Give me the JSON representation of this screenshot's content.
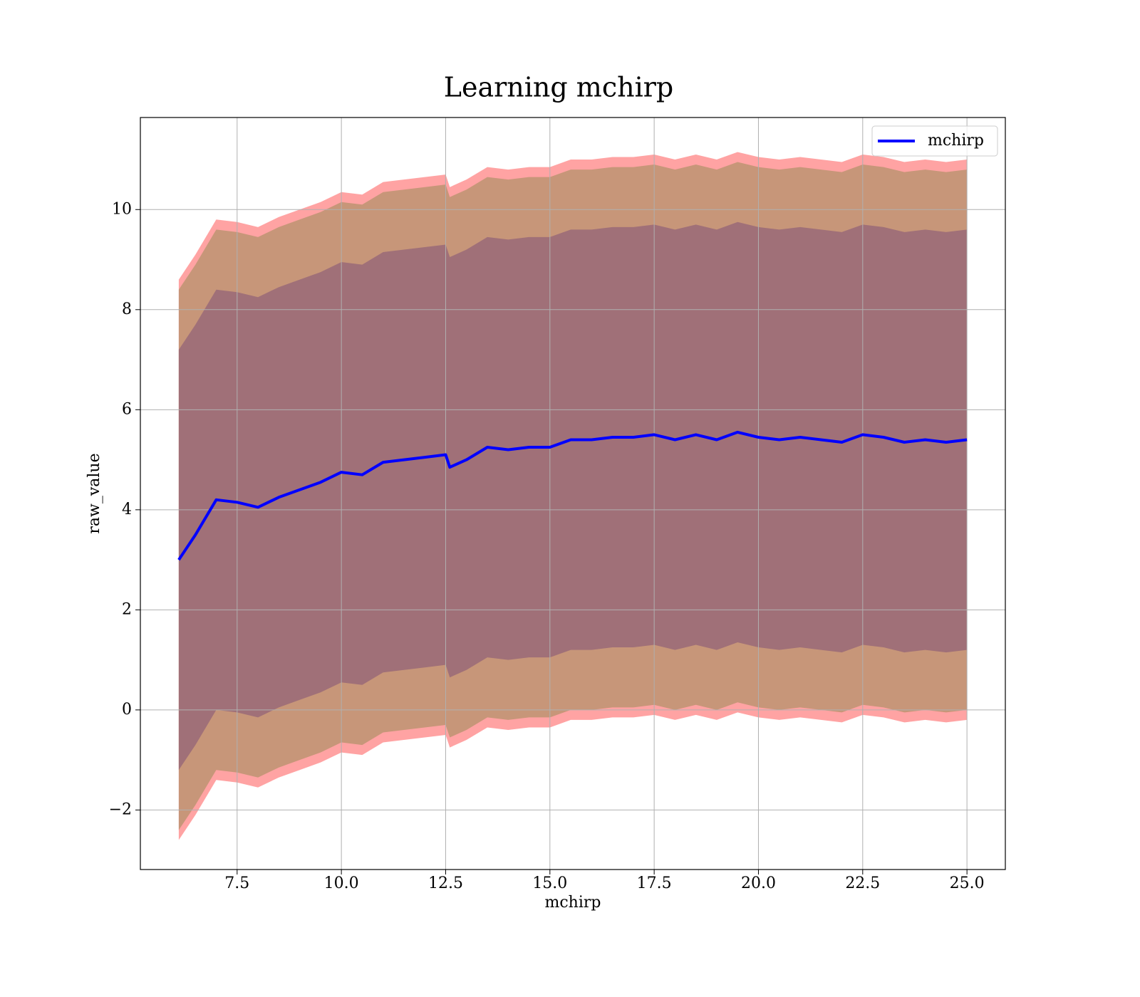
{
  "chart_data": {
    "type": "line",
    "title": "Learning mchirp",
    "xlabel": "mchirp",
    "ylabel": "raw_value",
    "x": [
      6.1,
      6.5,
      7.0,
      7.5,
      8.0,
      8.5,
      9.0,
      9.5,
      10.0,
      10.5,
      11.0,
      11.5,
      12.0,
      12.5,
      12.6,
      13.0,
      13.5,
      14.0,
      14.5,
      15.0,
      15.5,
      16.0,
      16.5,
      17.0,
      17.5,
      18.0,
      18.5,
      19.0,
      19.5,
      20.0,
      20.5,
      21.0,
      21.5,
      22.0,
      22.5,
      23.0,
      23.5,
      24.0,
      24.5,
      25.0
    ],
    "series": [
      {
        "name": "mchirp",
        "color": "#0000ff",
        "values": [
          3.0,
          3.5,
          4.2,
          4.15,
          4.05,
          4.25,
          4.4,
          4.55,
          4.75,
          4.7,
          4.95,
          5.0,
          5.05,
          5.1,
          4.85,
          5.0,
          5.25,
          5.2,
          5.25,
          5.25,
          5.4,
          5.4,
          5.45,
          5.45,
          5.5,
          5.4,
          5.5,
          5.4,
          5.55,
          5.45,
          5.4,
          5.45,
          5.4,
          5.35,
          5.5,
          5.45,
          5.35,
          5.4,
          5.35,
          5.4
        ]
      }
    ],
    "bands": [
      {
        "color": "#ffa3a3",
        "upper": [
          8.6,
          9.1,
          9.8,
          9.75,
          9.65,
          9.85,
          10.0,
          10.15,
          10.35,
          10.3,
          10.55,
          10.6,
          10.65,
          10.7,
          10.45,
          10.6,
          10.85,
          10.8,
          10.85,
          10.85,
          11.0,
          11.0,
          11.05,
          11.05,
          11.1,
          11.0,
          11.1,
          11.0,
          11.15,
          11.05,
          11.0,
          11.05,
          11.0,
          10.95,
          11.1,
          11.05,
          10.95,
          11.0,
          10.95,
          11.0
        ],
        "lower": [
          -2.6,
          -2.1,
          -1.4,
          -1.45,
          -1.55,
          -1.35,
          -1.2,
          -1.05,
          -0.85,
          -0.9,
          -0.65,
          -0.6,
          -0.55,
          -0.5,
          -0.75,
          -0.6,
          -0.35,
          -0.4,
          -0.35,
          -0.35,
          -0.2,
          -0.2,
          -0.15,
          -0.15,
          -0.1,
          -0.2,
          -0.1,
          -0.2,
          -0.05,
          -0.15,
          -0.2,
          -0.15,
          -0.2,
          -0.25,
          -0.1,
          -0.15,
          -0.25,
          -0.2,
          -0.25,
          -0.2
        ]
      },
      {
        "color": "#c79679",
        "upper": [
          8.4,
          8.9,
          9.6,
          9.55,
          9.45,
          9.65,
          9.8,
          9.95,
          10.15,
          10.1,
          10.35,
          10.4,
          10.45,
          10.5,
          10.25,
          10.4,
          10.65,
          10.6,
          10.65,
          10.65,
          10.8,
          10.8,
          10.85,
          10.85,
          10.9,
          10.8,
          10.9,
          10.8,
          10.95,
          10.85,
          10.8,
          10.85,
          10.8,
          10.75,
          10.9,
          10.85,
          10.75,
          10.8,
          10.75,
          10.8
        ],
        "lower": [
          -2.4,
          -1.9,
          -1.2,
          -1.25,
          -1.35,
          -1.15,
          -1.0,
          -0.85,
          -0.65,
          -0.7,
          -0.45,
          -0.4,
          -0.35,
          -0.3,
          -0.55,
          -0.4,
          -0.15,
          -0.2,
          -0.15,
          -0.15,
          0,
          0,
          0.05,
          0.05,
          0.1,
          0,
          0.1,
          0,
          0.15,
          0.05,
          0,
          0.05,
          0,
          -0.05,
          0.1,
          0.05,
          -0.05,
          0,
          -0.05,
          0
        ]
      },
      {
        "color": "#a07078",
        "upper": [
          7.2,
          7.7,
          8.4,
          8.35,
          8.25,
          8.45,
          8.6,
          8.75,
          8.95,
          8.9,
          9.15,
          9.2,
          9.25,
          9.3,
          9.05,
          9.2,
          9.45,
          9.4,
          9.45,
          9.45,
          9.6,
          9.6,
          9.65,
          9.65,
          9.7,
          9.6,
          9.7,
          9.6,
          9.75,
          9.65,
          9.6,
          9.65,
          9.6,
          9.55,
          9.7,
          9.65,
          9.55,
          9.6,
          9.55,
          9.6
        ],
        "lower": [
          -1.2,
          -0.7,
          0,
          -0.05,
          -0.15,
          0.05,
          0.2,
          0.35,
          0.55,
          0.5,
          0.75,
          0.8,
          0.85,
          0.9,
          0.65,
          0.8,
          1.05,
          1.0,
          1.05,
          1.05,
          1.2,
          1.2,
          1.25,
          1.25,
          1.3,
          1.2,
          1.3,
          1.2,
          1.35,
          1.25,
          1.2,
          1.25,
          1.2,
          1.15,
          1.3,
          1.25,
          1.15,
          1.2,
          1.15,
          1.2
        ]
      }
    ],
    "xlim": [
      5.18,
      25.92
    ],
    "ylim": [
      -3.19,
      11.84
    ],
    "xticks": [
      7.5,
      {
        "value": 10,
        "label": "10.0"
      },
      12.5,
      {
        "value": 15,
        "label": "15.0"
      },
      17.5,
      {
        "value": 20,
        "label": "20.0"
      },
      22.5,
      {
        "value": 25,
        "label": "25.0"
      }
    ],
    "yticks": [
      {
        "value": -2,
        "label": "−2"
      },
      0,
      2,
      4,
      6,
      8,
      10
    ],
    "grid": true,
    "legend": "upper right"
  }
}
